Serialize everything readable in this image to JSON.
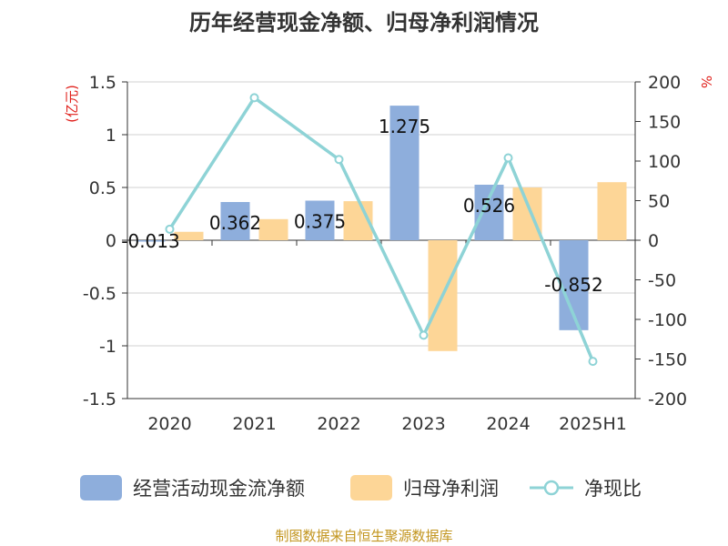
{
  "chart_data": {
    "type": "bar",
    "title": "历年经营现金净额、归母净利润情况",
    "categories": [
      "2020",
      "2021",
      "2022",
      "2023",
      "2024",
      "2025H1"
    ],
    "left_axis": {
      "unit": "(亿元)",
      "ylim": [
        -1.5,
        1.5
      ],
      "ticks": [
        "-1.5",
        "-1",
        "-0.5",
        "0",
        "0.5",
        "1",
        "1.5"
      ]
    },
    "right_axis": {
      "unit": "%",
      "ylim": [
        -200,
        200
      ],
      "ticks": [
        "-200",
        "-150",
        "-100",
        "-50",
        "0",
        "50",
        "100",
        "150",
        "200"
      ]
    },
    "series": [
      {
        "name": "经营活动现金流净额",
        "type": "bar",
        "axis": "left",
        "color": "#8eaedc",
        "values": [
          -0.013,
          0.362,
          0.375,
          1.275,
          0.526,
          -0.852
        ],
        "labels": [
          "-0.013",
          "0.362",
          "0.375",
          "1.275",
          "0.526",
          "-0.852"
        ]
      },
      {
        "name": "归母净利润",
        "type": "bar",
        "axis": "left",
        "color": "#fdd697",
        "values": [
          0.08,
          0.2,
          0.37,
          -1.05,
          0.5,
          0.55
        ]
      },
      {
        "name": "净现比",
        "type": "line",
        "axis": "right",
        "color": "#8ed3d6",
        "values": [
          14,
          180,
          102,
          -120,
          104,
          -153
        ]
      }
    ],
    "grid": true,
    "legend_position": "bottom"
  },
  "source": "制图数据来自恒生聚源数据库"
}
